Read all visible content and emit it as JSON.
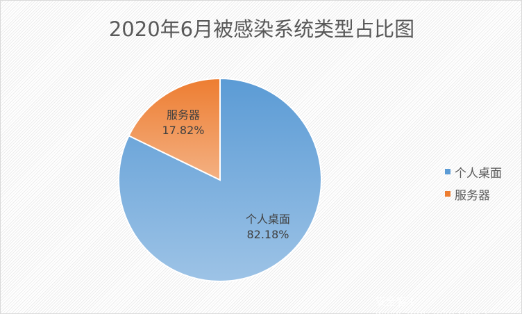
{
  "chart_data": {
    "type": "pie",
    "title": "2020年6月被感染系统类型占比图",
    "slices": [
      {
        "name": "个人桌面",
        "value": 82.18,
        "label": "82.18%",
        "color_top": "#5b9bd5",
        "color_bottom": "#9dc3e6"
      },
      {
        "name": "服务器",
        "value": 17.82,
        "label": "17.82%",
        "color_top": "#ed7d31",
        "color_bottom": "#f4b183"
      }
    ],
    "legend": {
      "position": "right",
      "entries": [
        "个人桌面",
        "服务器"
      ]
    }
  },
  "watermark": "安全客 ( www.anquanke.com )"
}
